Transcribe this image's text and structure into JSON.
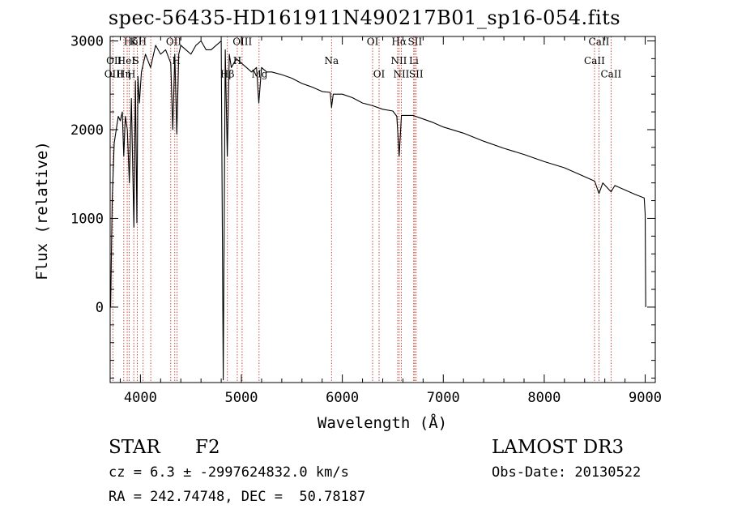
{
  "chart_data": {
    "type": "line",
    "title": "spec-56435-HD161911N490217B01_sp16-054.fits",
    "xlabel": "Wavelength (Å)",
    "ylabel": "Flux (relative)",
    "xlim": [
      3700,
      9100
    ],
    "ylim": [
      -850,
      3050
    ],
    "xticks": [
      "4000",
      "5000",
      "6000",
      "7000",
      "8000",
      "9000"
    ],
    "yticks": [
      "0",
      "1000",
      "2000",
      "3000"
    ],
    "series": [
      {
        "name": "flux",
        "x": [
          3705,
          3720,
          3740,
          3760,
          3780,
          3800,
          3820,
          3835,
          3850,
          3870,
          3890,
          3910,
          3935,
          3950,
          3965,
          3975,
          3990,
          4010,
          4050,
          4100,
          4150,
          4200,
          4250,
          4300,
          4320,
          4340,
          4360,
          4380,
          4400,
          4450,
          4500,
          4550,
          4600,
          4650,
          4700,
          4750,
          4800,
          4820,
          4840,
          4860,
          4880,
          4900,
          4950,
          5000,
          5050,
          5100,
          5150,
          5172,
          5200,
          5250,
          5300,
          5400,
          5500,
          5600,
          5700,
          5800,
          5880,
          5893,
          5910,
          6000,
          6100,
          6200,
          6300,
          6400,
          6500,
          6540,
          6563,
          6585,
          6700,
          6800,
          6900,
          7000,
          7200,
          7400,
          7600,
          7800,
          8000,
          8200,
          8400,
          8500,
          8542,
          8580,
          8662,
          8700,
          8800,
          8900,
          8990,
          9000,
          9005
        ],
        "values": [
          0,
          1200,
          1850,
          2000,
          2150,
          2100,
          2200,
          1700,
          2150,
          2000,
          1400,
          2350,
          900,
          2550,
          950,
          2600,
          2300,
          2650,
          2850,
          2700,
          2950,
          2850,
          2900,
          2750,
          2000,
          2850,
          1950,
          2850,
          2950,
          2900,
          2850,
          2950,
          3000,
          2900,
          2900,
          2950,
          3000,
          -820,
          2900,
          1700,
          2850,
          2700,
          2800,
          2750,
          2700,
          2650,
          2700,
          2300,
          2700,
          2650,
          2650,
          2620,
          2580,
          2520,
          2480,
          2430,
          2420,
          2250,
          2400,
          2400,
          2360,
          2300,
          2270,
          2230,
          2210,
          2150,
          1700,
          2160,
          2160,
          2120,
          2080,
          2030,
          1960,
          1870,
          1790,
          1720,
          1640,
          1570,
          1470,
          1420,
          1280,
          1400,
          1300,
          1370,
          1320,
          1270,
          1230,
          1050,
          0
        ]
      }
    ],
    "line_labels": [
      {
        "text": "Hδ",
        "x": 3905,
        "y": 2955
      },
      {
        "text": "K",
        "x": 3933,
        "y": 2955
      },
      {
        "text": "H",
        "x": 4020,
        "y": 2955
      },
      {
        "text": "OII",
        "x": 4330,
        "y": 2955
      },
      {
        "text": "OIII",
        "x": 5010,
        "y": 2955
      },
      {
        "text": "OI",
        "x": 6300,
        "y": 2955
      },
      {
        "text": "Hα",
        "x": 6562,
        "y": 2955
      },
      {
        "text": "SII",
        "x": 6720,
        "y": 2955
      },
      {
        "text": "CaII",
        "x": 8542,
        "y": 2955
      },
      {
        "text": "OII",
        "x": 3738,
        "y": 2740
      },
      {
        "text": "HeI",
        "x": 3860,
        "y": 2740
      },
      {
        "text": "S",
        "x": 3955,
        "y": 2740
      },
      {
        "text": "H",
        "x": 4355,
        "y": 2740
      },
      {
        "text": "H",
        "x": 4960,
        "y": 2740
      },
      {
        "text": "Na",
        "x": 5893,
        "y": 2740
      },
      {
        "text": "NII",
        "x": 6560,
        "y": 2740
      },
      {
        "text": "Li",
        "x": 6708,
        "y": 2740
      },
      {
        "text": "CaII",
        "x": 8498,
        "y": 2740
      },
      {
        "text": "OIII",
        "x": 3738,
        "y": 2590
      },
      {
        "text": "Hη",
        "x": 3835,
        "y": 2590
      },
      {
        "text": "H",
        "x": 3910,
        "y": 2590
      },
      {
        "text": "Hβ",
        "x": 4861,
        "y": 2590
      },
      {
        "text": "Mg",
        "x": 5180,
        "y": 2590
      },
      {
        "text": "OI",
        "x": 6364,
        "y": 2590
      },
      {
        "text": "NII",
        "x": 6584,
        "y": 2590
      },
      {
        "text": "SII",
        "x": 6731,
        "y": 2590
      },
      {
        "text": "CaII",
        "x": 8662,
        "y": 2590
      }
    ],
    "line_markers": [
      3727,
      3835,
      3869,
      3889,
      3934,
      3969,
      4026,
      4102,
      4300,
      4340,
      4363,
      4861,
      4959,
      5007,
      5175,
      5893,
      6300,
      6364,
      6548,
      6563,
      6584,
      6707,
      6717,
      6731,
      8498,
      8542,
      8662
    ],
    "marker_color": "#c0392b",
    "line_color": "#000000"
  },
  "info": {
    "object_type": "STAR",
    "subclass": "F2",
    "survey": "LAMOST DR3",
    "redshift": "cz = 6.3 ± -2997624832.0 km/s",
    "obs_date": "Obs-Date: 20130522",
    "coords": "RA = 242.74748, DEC =  50.78187"
  }
}
